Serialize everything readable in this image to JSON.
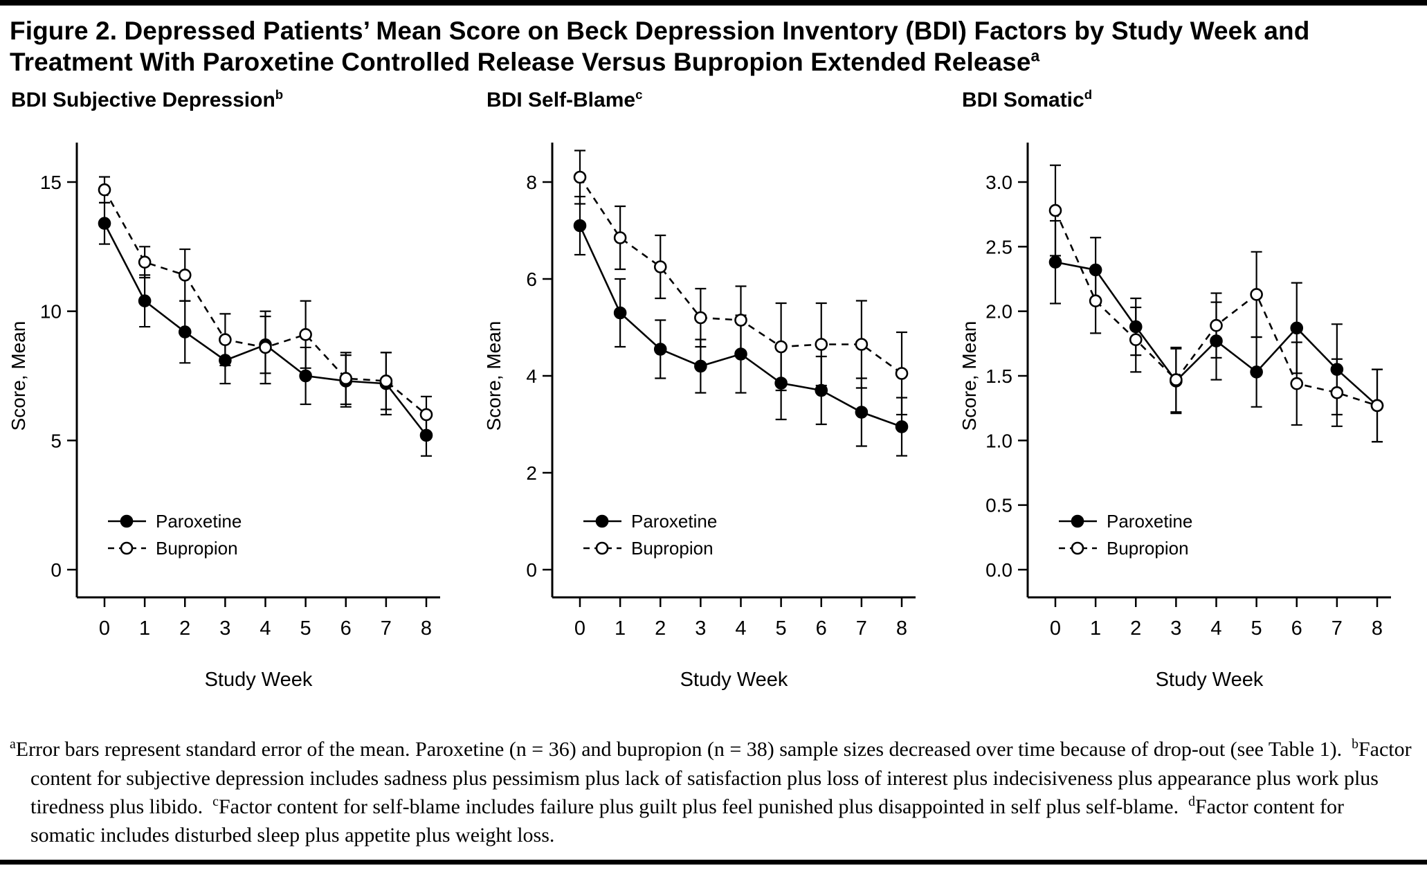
{
  "figure": {
    "title": "Figure 2. Depressed Patients’ Mean Score on Beck Depression Inventory (BDI) Factors by Study Week and Treatment With Paroxetine Controlled Release Versus Bupropion Extended Release",
    "title_sup": "a"
  },
  "colors": {
    "ink": "#000000",
    "background": "#ffffff"
  },
  "chart_data": [
    {
      "type": "line",
      "title": "BDI Subjective Depression",
      "title_sup": "b",
      "xlabel": "Study Week",
      "ylabel": "Score, Mean",
      "x": [
        0,
        1,
        2,
        3,
        4,
        5,
        6,
        7,
        8
      ],
      "ylim": [
        0,
        15
      ],
      "yticks": [
        0,
        5,
        10,
        15
      ],
      "ytick_labels": [
        "0",
        "5",
        "10",
        "15"
      ],
      "grid": false,
      "legend_position": "lower-left",
      "error_bars": "standard error of the mean",
      "series": [
        {
          "name": "Paroxetine",
          "marker": "filled",
          "line": "solid",
          "values": [
            13.4,
            10.4,
            9.2,
            8.1,
            8.7,
            7.5,
            7.3,
            7.2,
            5.2
          ],
          "errors": [
            0.8,
            1.0,
            1.2,
            0.9,
            1.1,
            1.1,
            1.0,
            1.2,
            0.8
          ]
        },
        {
          "name": "Bupropion",
          "marker": "open",
          "line": "dashed",
          "values": [
            14.7,
            11.9,
            11.4,
            8.9,
            8.6,
            9.1,
            7.4,
            7.3,
            6.0
          ],
          "errors": [
            0.5,
            0.6,
            1.0,
            1.0,
            1.4,
            1.3,
            1.0,
            1.1,
            0.7
          ]
        }
      ]
    },
    {
      "type": "line",
      "title": "BDI Self-Blame",
      "title_sup": "c",
      "xlabel": "Study Week",
      "ylabel": "Score, Mean",
      "x": [
        0,
        1,
        2,
        3,
        4,
        5,
        6,
        7,
        8
      ],
      "ylim": [
        0,
        8
      ],
      "yticks": [
        0,
        2,
        4,
        6,
        8
      ],
      "ytick_labels": [
        "0",
        "2",
        "4",
        "6",
        "8"
      ],
      "grid": false,
      "legend_position": "lower-left",
      "error_bars": "standard error of the mean",
      "series": [
        {
          "name": "Paroxetine",
          "marker": "filled",
          "line": "solid",
          "values": [
            7.1,
            5.3,
            4.55,
            4.2,
            4.45,
            3.85,
            3.7,
            3.25,
            2.95
          ],
          "errors": [
            0.6,
            0.7,
            0.6,
            0.55,
            0.8,
            0.75,
            0.7,
            0.7,
            0.6
          ]
        },
        {
          "name": "Bupropion",
          "marker": "open",
          "line": "dashed",
          "values": [
            8.1,
            6.85,
            6.25,
            5.2,
            5.15,
            4.6,
            4.65,
            4.65,
            4.05
          ],
          "errors": [
            0.55,
            0.65,
            0.65,
            0.6,
            0.7,
            0.9,
            0.85,
            0.9,
            0.85
          ]
        }
      ]
    },
    {
      "type": "line",
      "title": "BDI Somatic",
      "title_sup": "d",
      "xlabel": "Study Week",
      "ylabel": "Score, Mean",
      "x": [
        0,
        1,
        2,
        3,
        4,
        5,
        6,
        7,
        8
      ],
      "ylim": [
        0,
        3
      ],
      "yticks": [
        0,
        0.5,
        1,
        1.5,
        2,
        2.5,
        3
      ],
      "ytick_labels": [
        "0.0",
        "0.5",
        "1.0",
        "1.5",
        "2.0",
        "2.5",
        "3.0"
      ],
      "grid": false,
      "legend_position": "lower-left",
      "error_bars": "standard error of the mean",
      "series": [
        {
          "name": "Paroxetine",
          "marker": "filled",
          "line": "solid",
          "values": [
            2.38,
            2.32,
            1.88,
            1.46,
            1.77,
            1.53,
            1.87,
            1.55,
            1.27
          ],
          "errors": [
            0.32,
            0.25,
            0.22,
            0.25,
            0.3,
            0.27,
            0.35,
            0.35,
            0.28
          ]
        },
        {
          "name": "Bupropion",
          "marker": "open",
          "line": "dashed",
          "values": [
            2.78,
            2.08,
            1.78,
            1.47,
            1.89,
            2.13,
            1.44,
            1.37,
            1.27
          ],
          "errors": [
            0.35,
            0.25,
            0.25,
            0.25,
            0.25,
            0.33,
            0.32,
            0.26,
            0.28
          ]
        }
      ]
    }
  ],
  "footnotes": [
    {
      "sup": "a",
      "text": "Error bars represent standard error of the mean. Paroxetine (n = 36) and bupropion (n = 38) sample sizes decreased over time because of drop-out (see Table 1)."
    },
    {
      "sup": "b",
      "text": "Factor content for subjective depression includes sadness plus pessimism plus lack of satisfaction plus loss of interest plus indecisiveness plus appearance plus work plus tiredness plus libido."
    },
    {
      "sup": "c",
      "text": "Factor content for self-blame includes failure plus guilt plus feel punished plus disappointed in self plus self-blame."
    },
    {
      "sup": "d",
      "text": "Factor content for somatic includes disturbed sleep plus appetite plus weight loss."
    }
  ]
}
